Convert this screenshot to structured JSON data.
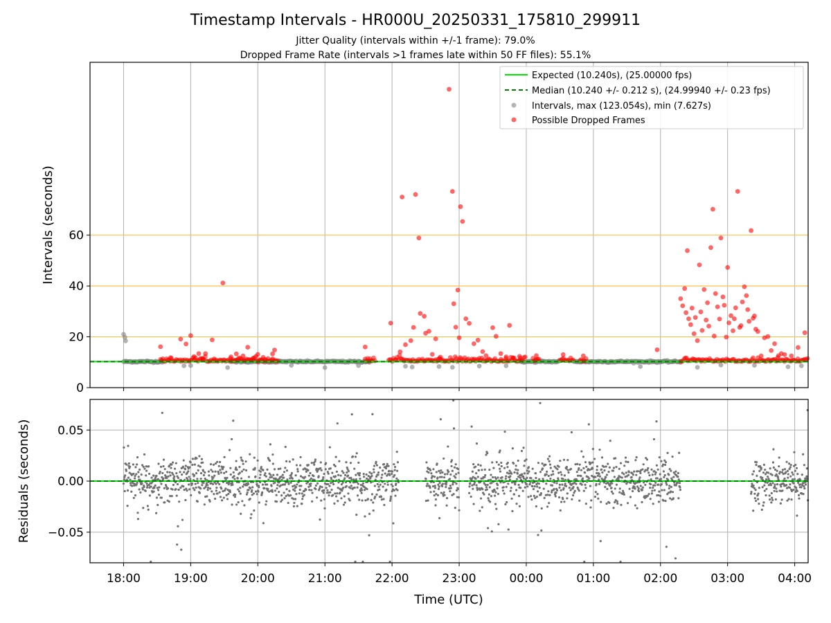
{
  "chart_data": [
    {
      "type": "scatter",
      "panel": "intervals",
      "title": "Timestamp Intervals - HR000U_20250331_175810_299911",
      "subtitle": [
        "Jitter Quality (intervals within +/-1 frame): 79.0%",
        "Dropped Frame Rate (intervals >1 frames late within 50 FF files): 55.1%"
      ],
      "ylabel": "Intervals (seconds)",
      "ylim": [
        0,
        128
      ],
      "y_ticks": [
        {
          "value": 0,
          "label": "0"
        },
        {
          "value": 20,
          "label": "20"
        },
        {
          "value": 40,
          "label": "40"
        },
        {
          "value": 60,
          "label": "60"
        }
      ],
      "x_hours_span": [
        17.5,
        28.2
      ],
      "x_tick_hours": [
        18,
        19,
        20,
        21,
        22,
        23,
        24,
        25,
        26,
        27,
        28
      ],
      "h_reference_lines": [
        20,
        40,
        60
      ],
      "reference_line_color": "#FFC04C",
      "grid": "vertical",
      "legend_placement": "top-right",
      "legend": [
        {
          "label": "Expected (10.240s), (25.00000 fps)",
          "style": "line",
          "color": "#00E600"
        },
        {
          "label": "Median (10.240 +/- 0.212 s), (24.99940 +/- 0.23 fps)",
          "style": "dashed",
          "color": "#008000"
        },
        {
          "label": "Intervals, max (123.054s), min (7.627s)",
          "style": "marker",
          "color": "#808080"
        },
        {
          "label": "Possible Dropped Frames",
          "style": "marker",
          "color": "#FF0000"
        }
      ],
      "expected_value": 10.24,
      "median_value": 10.24,
      "normal_segments_hours": [
        [
          18.0,
          18.6
        ],
        [
          19.6,
          21.7
        ],
        [
          23.9,
          24.5
        ],
        [
          24.7,
          26.3
        ]
      ],
      "series": [
        {
          "name": "Possible Dropped Frames",
          "color": "#FF0000",
          "points": [
            [
              18.55,
              16.1
            ],
            [
              18.7,
              11.8
            ],
            [
              18.85,
              19.1
            ],
            [
              18.93,
              17.2
            ],
            [
              19.0,
              20.5
            ],
            [
              19.05,
              12.2
            ],
            [
              19.12,
              13.4
            ],
            [
              19.18,
              11.1
            ],
            [
              19.22,
              13.4
            ],
            [
              19.32,
              18.8
            ],
            [
              19.35,
              11.3
            ],
            [
              19.48,
              41.2
            ],
            [
              19.6,
              12.1
            ],
            [
              19.68,
              13.3
            ],
            [
              19.78,
              12.5
            ],
            [
              19.85,
              15.9
            ],
            [
              19.93,
              11.6
            ],
            [
              20.0,
              13.1
            ],
            [
              20.08,
              11.9
            ],
            [
              20.22,
              13.3
            ],
            [
              20.25,
              14.8
            ],
            [
              21.6,
              16.0
            ],
            [
              21.98,
              25.4
            ],
            [
              22.12,
              14.1
            ],
            [
              22.15,
              75.0
            ],
            [
              22.2,
              16.9
            ],
            [
              22.28,
              18.5
            ],
            [
              22.32,
              23.7
            ],
            [
              22.35,
              76.0
            ],
            [
              22.4,
              58.9
            ],
            [
              22.42,
              29.2
            ],
            [
              22.48,
              28.1
            ],
            [
              22.5,
              21.4
            ],
            [
              22.55,
              22.2
            ],
            [
              22.6,
              13.1
            ],
            [
              22.65,
              19.2
            ],
            [
              22.72,
              12.0
            ],
            [
              22.85,
              117.4
            ],
            [
              22.9,
              77.2
            ],
            [
              22.92,
              33.0
            ],
            [
              22.95,
              23.8
            ],
            [
              22.98,
              38.4
            ],
            [
              23.0,
              19.6
            ],
            [
              23.02,
              71.2
            ],
            [
              23.05,
              65.4
            ],
            [
              23.1,
              27.1
            ],
            [
              23.15,
              25.3
            ],
            [
              23.22,
              17.3
            ],
            [
              23.28,
              18.7
            ],
            [
              23.35,
              14.2
            ],
            [
              23.4,
              12.6
            ],
            [
              23.5,
              23.6
            ],
            [
              23.55,
              20.2
            ],
            [
              23.62,
              13.4
            ],
            [
              23.7,
              12.1
            ],
            [
              23.75,
              24.5
            ],
            [
              23.8,
              11.8
            ],
            [
              23.9,
              12.3
            ],
            [
              24.15,
              12.6
            ],
            [
              24.55,
              13.0
            ],
            [
              24.85,
              12.5
            ],
            [
              25.95,
              14.9
            ],
            [
              26.3,
              35.0
            ],
            [
              26.33,
              32.2
            ],
            [
              26.36,
              39.0
            ],
            [
              26.38,
              29.5
            ],
            [
              26.4,
              53.9
            ],
            [
              26.42,
              27.1
            ],
            [
              26.45,
              24.8
            ],
            [
              26.47,
              31.3
            ],
            [
              26.5,
              21.2
            ],
            [
              26.52,
              27.6
            ],
            [
              26.55,
              18.5
            ],
            [
              26.58,
              48.3
            ],
            [
              26.6,
              29.8
            ],
            [
              26.62,
              22.5
            ],
            [
              26.65,
              38.6
            ],
            [
              26.68,
              26.6
            ],
            [
              26.7,
              33.4
            ],
            [
              26.72,
              24.2
            ],
            [
              26.75,
              55.1
            ],
            [
              26.78,
              70.2
            ],
            [
              26.8,
              20.3
            ],
            [
              26.82,
              37.0
            ],
            [
              26.85,
              31.8
            ],
            [
              26.88,
              27.0
            ],
            [
              26.9,
              58.9
            ],
            [
              26.93,
              35.7
            ],
            [
              26.95,
              32.4
            ],
            [
              26.98,
              19.9
            ],
            [
              27.0,
              47.3
            ],
            [
              27.02,
              25.5
            ],
            [
              27.05,
              28.3
            ],
            [
              27.08,
              22.4
            ],
            [
              27.1,
              27.1
            ],
            [
              27.12,
              31.4
            ],
            [
              27.15,
              77.2
            ],
            [
              27.18,
              23.7
            ],
            [
              27.2,
              24.4
            ],
            [
              27.22,
              33.7
            ],
            [
              27.25,
              39.7
            ],
            [
              27.28,
              36.2
            ],
            [
              27.3,
              30.7
            ],
            [
              27.32,
              26.1
            ],
            [
              27.35,
              61.8
            ],
            [
              27.38,
              27.3
            ],
            [
              27.4,
              28.2
            ],
            [
              27.42,
              23.0
            ],
            [
              27.45,
              22.1
            ],
            [
              27.5,
              12.5
            ],
            [
              27.55,
              19.6
            ],
            [
              27.6,
              20.1
            ],
            [
              27.65,
              14.6
            ],
            [
              27.7,
              17.3
            ],
            [
              27.75,
              11.9
            ],
            [
              27.8,
              13.4
            ],
            [
              27.85,
              13.0
            ],
            [
              27.95,
              12.5
            ],
            [
              28.05,
              15.8
            ],
            [
              28.15,
              21.6
            ]
          ]
        },
        {
          "name": "Intervals, max (123.054s), min (7.627s)",
          "color": "#808080",
          "points": [
            [
              18.0,
              21.0
            ],
            [
              18.02,
              19.8
            ],
            [
              18.03,
              18.4
            ],
            [
              18.9,
              8.6
            ],
            [
              19.0,
              8.7
            ],
            [
              19.55,
              7.9
            ],
            [
              20.5,
              8.8
            ],
            [
              21.0,
              7.9
            ],
            [
              21.5,
              8.7
            ],
            [
              22.2,
              8.4
            ],
            [
              22.3,
              8.1
            ],
            [
              22.7,
              8.3
            ],
            [
              22.9,
              8.0
            ],
            [
              23.3,
              8.5
            ],
            [
              23.7,
              8.6
            ],
            [
              25.7,
              8.3
            ],
            [
              26.55,
              8.0
            ],
            [
              26.9,
              8.9
            ],
            [
              27.4,
              8.8
            ],
            [
              27.9,
              8.2
            ],
            [
              28.1,
              8.6
            ]
          ]
        }
      ]
    },
    {
      "type": "scatter",
      "panel": "residuals",
      "ylabel": "Residuals (seconds)",
      "xlabel": "Time (UTC)",
      "ylim": [
        -0.08,
        0.08
      ],
      "y_ticks": [
        {
          "value": -0.05,
          "label": "−0.05"
        },
        {
          "value": 0.0,
          "label": "0.00"
        },
        {
          "value": 0.05,
          "label": "0.05"
        }
      ],
      "x_ticks": [
        {
          "hour": 18,
          "label": "18:00"
        },
        {
          "hour": 19,
          "label": "19:00"
        },
        {
          "hour": 20,
          "label": "20:00"
        },
        {
          "hour": 21,
          "label": "21:00"
        },
        {
          "hour": 22,
          "label": "22:00"
        },
        {
          "hour": 23,
          "label": "23:00"
        },
        {
          "hour": 24,
          "label": "00:00"
        },
        {
          "hour": 25,
          "label": "01:00"
        },
        {
          "hour": 26,
          "label": "02:00"
        },
        {
          "hour": 27,
          "label": "03:00"
        },
        {
          "hour": 28,
          "label": "04:00"
        }
      ],
      "grid": "both",
      "residual_color": "#707070",
      "dense_segments_hours": [
        [
          18.0,
          20.3
        ],
        [
          20.3,
          22.1
        ],
        [
          22.5,
          23.0
        ],
        [
          23.15,
          26.3
        ],
        [
          27.35,
          28.2
        ]
      ],
      "baseline": 0.0
    }
  ]
}
